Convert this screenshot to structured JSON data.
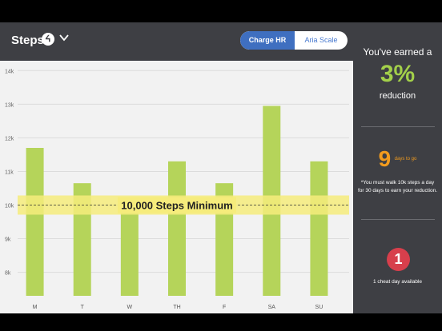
{
  "header": {
    "title": "Steps",
    "fitbit_icon_glyph": "ᔦ",
    "toggle": {
      "active_label": "Charge HR",
      "inactive_label": "Aria Scale"
    }
  },
  "sidebar": {
    "earned_text": "You've earned a",
    "earned_value": "3%",
    "earned_sub": "reduction",
    "days_number": "9",
    "days_label": "days to go",
    "note": "*You must walk 10k steps a day for 30 days to earn your reduction.",
    "cheat_count": "1",
    "cheat_text": "1 cheat day available"
  },
  "chart_data": {
    "type": "bar",
    "categories": [
      "M",
      "T",
      "W",
      "TH",
      "F",
      "SA",
      "SU"
    ],
    "values": [
      11700,
      10650,
      10200,
      11300,
      10650,
      12950,
      11300
    ],
    "y_ticks": [
      "8k",
      "9k",
      "10k",
      "11k",
      "12k",
      "13k",
      "14k"
    ],
    "ylim": [
      7300,
      14150
    ],
    "reference_line": {
      "value": 10000,
      "label": "10,000 Steps Minimum"
    },
    "grid": true,
    "colors": {
      "bar": "#b5d45a",
      "band": "#f6ec7c"
    }
  }
}
